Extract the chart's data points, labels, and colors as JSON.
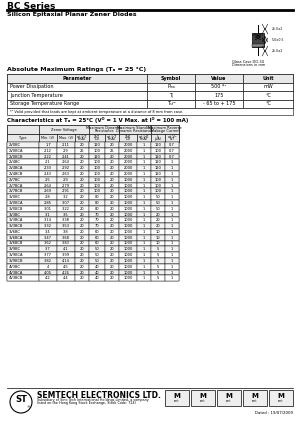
{
  "title": "BC Series",
  "subtitle": "Silicon Epitaxial Planar Zener Diodes",
  "abs_max_title": "Absolute Maximum Ratings (Tₐ = 25 °C)",
  "abs_max_headers": [
    "Parameter",
    "Symbol",
    "Value",
    "Unit"
  ],
  "abs_max_rows": [
    [
      "Power Dissipation",
      "Pₘₐ",
      "500 *¹",
      "mW"
    ],
    [
      "Junction Temperature",
      "Tⱼ",
      "175",
      "°C"
    ],
    [
      "Storage Temperature Range",
      "Tₛₜᴳ",
      "- 65 to + 175",
      "°C"
    ]
  ],
  "abs_max_note": "*¹ Valid provided that leads are kept at ambient temperature at a distance of 8 mm from case.",
  "char_title": "Characteristics at Tₐ = 25°C (Vᴼ = 1 V Max. at Iᴼ = 100 mA)",
  "char_rows": [
    [
      "2V0BC",
      "1.7",
      "2.11",
      "20",
      "120",
      "20",
      "2000",
      "1",
      "120",
      "0.7"
    ],
    [
      "2V0BCA",
      "2.12",
      "2.9",
      "25",
      "100",
      "25",
      "2000",
      "1",
      "100",
      "0.7"
    ],
    [
      "2V0BCB",
      "2.22",
      "2.41",
      "20",
      "120",
      "20",
      "2000",
      "1",
      "120",
      "0.7"
    ],
    [
      "2V4BC",
      "2.1",
      "2.64",
      "20",
      "100",
      "20",
      "2000",
      "1",
      "120",
      "1"
    ],
    [
      "2V4BCA",
      "2.33",
      "2.92",
      "20",
      "100",
      "20",
      "2000",
      "1",
      "120",
      "1"
    ],
    [
      "2V4BCB",
      "2.43",
      "2.63",
      "20",
      "100",
      "20",
      "2000",
      "1",
      "120",
      "1"
    ],
    [
      "2V7BC",
      "2.5",
      "2.9",
      "20",
      "100",
      "20",
      "1000",
      "1",
      "100",
      "1"
    ],
    [
      "2V7BCA",
      "2.64",
      "2.79",
      "20",
      "100",
      "20",
      "1000",
      "1",
      "100",
      "1"
    ],
    [
      "2V7BCB",
      "2.69",
      "2.91",
      "20",
      "100",
      "20",
      "1000",
      "1",
      "100",
      "1"
    ],
    [
      "3V0BC",
      "2.8",
      "3.2",
      "20",
      "80",
      "20",
      "1000",
      "1",
      "50",
      "1"
    ],
    [
      "3V0BCA",
      "2.85",
      "3.07",
      "20",
      "80",
      "20",
      "1000",
      "1",
      "50",
      "1"
    ],
    [
      "3V0BCB",
      "3.01",
      "3.22",
      "20",
      "80",
      "20",
      "1000",
      "1",
      "50",
      "1"
    ],
    [
      "3V3BC",
      "3.1",
      "3.5",
      "20",
      "70",
      "20",
      "1000",
      "1",
      "20",
      "1"
    ],
    [
      "3V3BCA",
      "3.14",
      "3.38",
      "20",
      "70",
      "20",
      "1000",
      "1",
      "20",
      "1"
    ],
    [
      "3V3BCB",
      "3.32",
      "3.53",
      "20",
      "70",
      "20",
      "1000",
      "1",
      "20",
      "1"
    ],
    [
      "3V6BC",
      "3.4",
      "3.8",
      "20",
      "60",
      "20",
      "1000",
      "1",
      "10",
      "1"
    ],
    [
      "3V6BCA",
      "3.47",
      "3.68",
      "20",
      "60",
      "20",
      "1000",
      "1",
      "10",
      "1"
    ],
    [
      "3V6BCB",
      "3.62",
      "3.83",
      "20",
      "60",
      "20",
      "1000",
      "1",
      "10",
      "1"
    ],
    [
      "3V9BC",
      "3.7",
      "4.1",
      "20",
      "50",
      "20",
      "1000",
      "1",
      "5",
      "1"
    ],
    [
      "3V9BCA",
      "3.77",
      "3.99",
      "20",
      "50",
      "20",
      "1000",
      "1",
      "5",
      "1"
    ],
    [
      "3V9BCB",
      "3.82",
      "4.14",
      "20",
      "50",
      "20",
      "1000",
      "1",
      "5",
      "1"
    ],
    [
      "4V3BC",
      "4",
      "4.5",
      "20",
      "40",
      "20",
      "1000",
      "1",
      "5",
      "1"
    ],
    [
      "4V3BCA",
      "4.05",
      "4.26",
      "20",
      "40",
      "20",
      "1000",
      "1",
      "5",
      "1"
    ],
    [
      "4V3BCB",
      "4.2",
      "4.4",
      "20",
      "40",
      "20",
      "1000",
      "1",
      "5",
      "1"
    ]
  ],
  "footer_company": "SEMTECH ELECTRONICS LTD.",
  "footer_sub": "Subsidiary of Sino Tech International Holdings Limited, a company\nlisted on the Hong Kong Stock Exchange, Stock Code: 724)",
  "footer_date": "Dated : 19/07/2009",
  "bg_color": "#ffffff",
  "header_bg": "#e8e8e8",
  "row_bg_even": "#f2f2f2",
  "row_bg_odd": "#ffffff",
  "border_color": "#000000"
}
